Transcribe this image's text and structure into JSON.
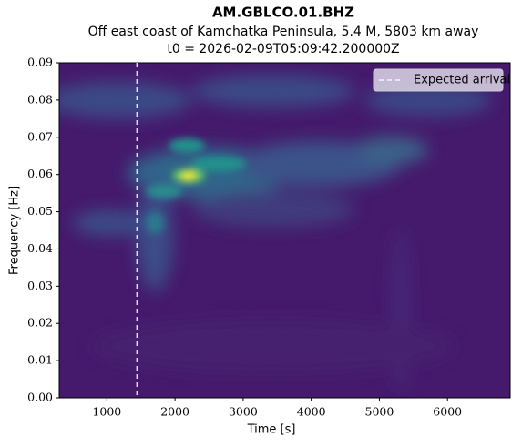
{
  "chart_data": {
    "type": "spectrogram",
    "title": "AM.GBLCO.01.BHZ",
    "subtitle": "Off east coast of Kamchatka Peninsula, 5.4 M, 5803 km away",
    "subtitle2": "t0 = 2026-02-09T05:09:42.200000Z",
    "x_label": "Time [s]",
    "y_label": "Frequency [Hz]",
    "xlim": [
      300,
      6920
    ],
    "xticks": [
      1000,
      2000,
      3000,
      4000,
      5000,
      6000
    ],
    "ylim": [
      0,
      0.09
    ],
    "yticks": [
      {
        "value": 0,
        "label": "0.00"
      },
      0.01,
      0.02,
      0.03,
      0.04,
      0.05,
      0.06,
      0.07,
      0.08,
      0.09
    ],
    "arrival": {
      "name": "Expected arrival",
      "x": 1440,
      "color": "#ffffff"
    },
    "legend": "upper right"
  }
}
